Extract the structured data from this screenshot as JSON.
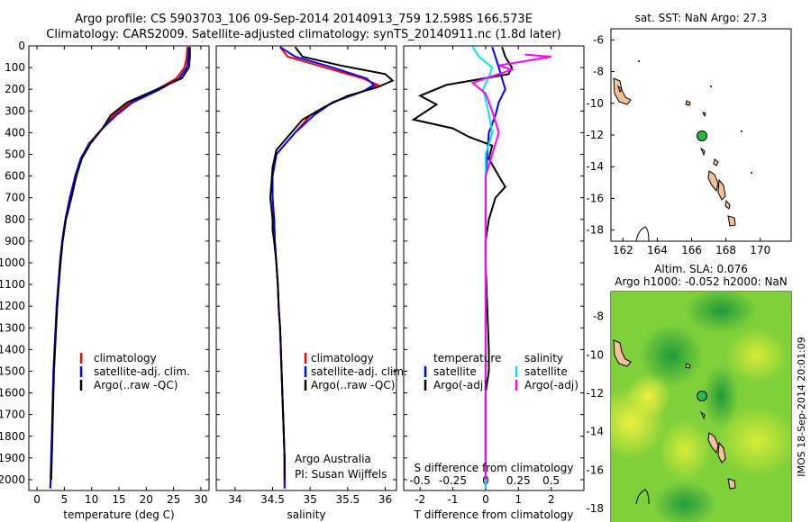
{
  "header": {
    "line1": "Argo profile: CS 5903703_106 09-Sep-2014 20140913_759 12.598S 166.573E",
    "line2": "Climatology: CARS2009. Satellite-adjusted climatology: synTS_20140911.nc (1.8d later)"
  },
  "credit": "IMOS 18-Sep-2014 20:01:09",
  "colors": {
    "climatology": "#ff0000",
    "satellite": "#0000ff",
    "argo": "#000000",
    "argo_salinity": "#ff00ff",
    "satellite_salinity": "#00e5ee",
    "land": "#f4c09a",
    "float_marker": "#22bb44"
  },
  "chart_data": [
    {
      "type": "line",
      "xlabel": "temperature (deg C)",
      "ylabel": "",
      "xlim": [
        -1.5,
        31.5
      ],
      "ylim": [
        2050,
        0
      ],
      "xticks": [
        0,
        5,
        10,
        15,
        20,
        25,
        30
      ],
      "yticks": [
        0,
        100,
        200,
        300,
        400,
        500,
        600,
        700,
        800,
        900,
        1000,
        1100,
        1200,
        1300,
        1400,
        1500,
        1600,
        1700,
        1800,
        1900,
        2000
      ],
      "legend": [
        "climatology",
        "satellite-adj. clim.",
        "Argo(..raw -QC)"
      ],
      "legend_position": "center",
      "series": [
        {
          "name": "climatology",
          "color": "#ff0000",
          "points": [
            [
              27.5,
              5
            ],
            [
              27.4,
              50
            ],
            [
              27.0,
              100
            ],
            [
              25.5,
              150
            ],
            [
              22.0,
              200
            ],
            [
              17.0,
              260
            ],
            [
              14.0,
              320
            ],
            [
              12.0,
              380
            ],
            [
              9.5,
              450
            ],
            [
              8.0,
              520
            ],
            [
              7.0,
              600
            ],
            [
              6.0,
              700
            ],
            [
              5.2,
              800
            ],
            [
              4.6,
              900
            ],
            [
              4.2,
              1000
            ],
            [
              3.9,
              1100
            ],
            [
              3.6,
              1200
            ],
            [
              3.4,
              1300
            ],
            [
              3.2,
              1400
            ],
            [
              3.0,
              1500
            ],
            [
              2.9,
              1600
            ],
            [
              2.8,
              1700
            ],
            [
              2.7,
              1800
            ],
            [
              2.6,
              1900
            ],
            [
              2.5,
              2000
            ],
            [
              2.4,
              2040
            ]
          ]
        },
        {
          "name": "satellite-adj. clim.",
          "color": "#0000ff",
          "points": [
            [
              27.8,
              5
            ],
            [
              27.7,
              50
            ],
            [
              27.4,
              100
            ],
            [
              26.0,
              150
            ],
            [
              22.5,
              200
            ],
            [
              17.5,
              260
            ],
            [
              14.5,
              320
            ],
            [
              12.0,
              380
            ],
            [
              9.6,
              450
            ],
            [
              8.0,
              520
            ],
            [
              7.0,
              600
            ],
            [
              6.0,
              700
            ],
            [
              5.2,
              800
            ],
            [
              4.6,
              900
            ],
            [
              4.2,
              1000
            ],
            [
              3.9,
              1100
            ],
            [
              3.6,
              1200
            ],
            [
              3.4,
              1300
            ],
            [
              3.2,
              1400
            ],
            [
              3.0,
              1500
            ],
            [
              2.9,
              1600
            ],
            [
              2.8,
              1700
            ],
            [
              2.7,
              1800
            ],
            [
              2.6,
              1900
            ],
            [
              2.5,
              2000
            ],
            [
              2.45,
              2040
            ]
          ]
        },
        {
          "name": "Argo(..raw -QC)",
          "color": "#000000",
          "points": [
            [
              28.0,
              5
            ],
            [
              28.0,
              50
            ],
            [
              27.8,
              100
            ],
            [
              26.5,
              150
            ],
            [
              22.0,
              200
            ],
            [
              16.5,
              260
            ],
            [
              13.5,
              320
            ],
            [
              12.0,
              380
            ],
            [
              9.8,
              450
            ],
            [
              8.2,
              520
            ],
            [
              7.2,
              600
            ],
            [
              6.3,
              700
            ],
            [
              5.3,
              800
            ],
            [
              4.7,
              900
            ],
            [
              4.3,
              1000
            ],
            [
              4.0,
              1100
            ],
            [
              3.7,
              1200
            ],
            [
              3.5,
              1300
            ],
            [
              3.3,
              1400
            ],
            [
              3.1,
              1500
            ],
            [
              3.0,
              1600
            ],
            [
              2.9,
              1700
            ],
            [
              2.8,
              1800
            ],
            [
              2.7,
              1900
            ],
            [
              2.6,
              2000
            ]
          ]
        }
      ]
    },
    {
      "type": "line",
      "xlabel": "salinity",
      "ylabel": "",
      "xlim": [
        33.75,
        36.15
      ],
      "ylim": [
        2050,
        0
      ],
      "xticks": [
        34,
        34.5,
        35,
        35.5,
        36
      ],
      "xtick_labels": [
        "34",
        "34.5",
        "35",
        "35.5",
        "36"
      ],
      "legend": [
        "climatology",
        "satellite-adj. clim.",
        "Argo(..raw -QC)"
      ],
      "legend_position": "center",
      "notes": [
        "Argo Australia",
        "PI: Susan Wijffels"
      ],
      "series": [
        {
          "name": "climatology",
          "color": "#ff0000",
          "points": [
            [
              34.6,
              5
            ],
            [
              34.7,
              50
            ],
            [
              35.2,
              100
            ],
            [
              35.7,
              150
            ],
            [
              35.9,
              180
            ],
            [
              35.7,
              210
            ],
            [
              35.3,
              260
            ],
            [
              35.0,
              320
            ],
            [
              34.8,
              400
            ],
            [
              34.55,
              500
            ],
            [
              34.5,
              600
            ],
            [
              34.5,
              700
            ],
            [
              34.52,
              800
            ],
            [
              34.53,
              900
            ],
            [
              34.55,
              1000
            ],
            [
              34.57,
              1100
            ],
            [
              34.58,
              1200
            ],
            [
              34.6,
              1300
            ],
            [
              34.61,
              1400
            ],
            [
              34.62,
              1500
            ],
            [
              34.63,
              1600
            ],
            [
              34.64,
              1700
            ],
            [
              34.65,
              1800
            ],
            [
              34.66,
              1900
            ],
            [
              34.66,
              2000
            ],
            [
              34.66,
              2040
            ]
          ]
        },
        {
          "name": "satellite-adj. clim.",
          "color": "#0000ff",
          "points": [
            [
              34.6,
              5
            ],
            [
              34.8,
              50
            ],
            [
              35.3,
              100
            ],
            [
              35.75,
              150
            ],
            [
              35.85,
              180
            ],
            [
              35.7,
              210
            ],
            [
              35.3,
              260
            ],
            [
              35.05,
              320
            ],
            [
              34.8,
              400
            ],
            [
              34.55,
              500
            ],
            [
              34.5,
              600
            ],
            [
              34.5,
              700
            ],
            [
              34.52,
              800
            ],
            [
              34.53,
              900
            ],
            [
              34.55,
              1000
            ],
            [
              34.57,
              1100
            ],
            [
              34.58,
              1200
            ],
            [
              34.6,
              1300
            ],
            [
              34.61,
              1400
            ],
            [
              34.62,
              1500
            ],
            [
              34.63,
              1600
            ],
            [
              34.64,
              1700
            ],
            [
              34.65,
              1800
            ],
            [
              34.66,
              1900
            ],
            [
              34.66,
              2000
            ],
            [
              34.66,
              2040
            ]
          ]
        },
        {
          "name": "Argo(..raw -QC)",
          "color": "#000000",
          "points": [
            [
              34.8,
              5
            ],
            [
              34.9,
              50
            ],
            [
              35.4,
              90
            ],
            [
              36.0,
              130
            ],
            [
              36.1,
              160
            ],
            [
              35.9,
              190
            ],
            [
              35.5,
              230
            ],
            [
              35.2,
              280
            ],
            [
              34.9,
              340
            ],
            [
              34.75,
              400
            ],
            [
              34.55,
              480
            ],
            [
              34.5,
              560
            ],
            [
              34.47,
              700
            ],
            [
              34.5,
              800
            ],
            [
              34.5,
              850
            ],
            [
              34.52,
              900
            ],
            [
              34.55,
              1000
            ],
            [
              34.57,
              1100
            ],
            [
              34.58,
              1200
            ],
            [
              34.6,
              1300
            ],
            [
              34.61,
              1400
            ],
            [
              34.62,
              1500
            ],
            [
              34.63,
              1600
            ],
            [
              34.64,
              1700
            ],
            [
              34.65,
              1800
            ],
            [
              34.66,
              1900
            ],
            [
              34.66,
              2000
            ]
          ]
        }
      ]
    },
    {
      "type": "line",
      "xlabel": "T difference from climatology",
      "xlabel_top": "S difference from climatology",
      "ylabel": "",
      "xlim": [
        -2.5,
        3
      ],
      "ylim": [
        2050,
        0
      ],
      "xticks": [
        -2,
        -1,
        0,
        1,
        2
      ],
      "xtick_labels": [
        "-2",
        "-1",
        "0",
        "1",
        "2"
      ],
      "secondary_xticks": [
        -0.5,
        -0.25,
        0,
        0.25,
        0.5
      ],
      "secondary_xtick_labels": [
        "-0.5",
        "-0.25",
        "0",
        "0.25",
        "0.5"
      ],
      "legend_groups": [
        {
          "title": "temperature",
          "items": [
            "satellite",
            "Argo(-adj)"
          ]
        },
        {
          "title": "salinity",
          "items": [
            "satellite",
            "Argo(-adj)"
          ]
        }
      ],
      "series": [
        {
          "name": "temperature satellite",
          "color": "#0000ff",
          "points": [
            [
              0.2,
              5
            ],
            [
              0.3,
              50
            ],
            [
              0.4,
              100
            ],
            [
              0.5,
              150
            ],
            [
              0.6,
              200
            ],
            [
              0.4,
              260
            ],
            [
              0.3,
              320
            ],
            [
              0.1,
              400
            ],
            [
              0.05,
              500
            ],
            [
              0.0,
              600
            ],
            [
              0.0,
              800
            ],
            [
              0.0,
              1000
            ],
            [
              0.0,
              1500
            ],
            [
              0.0,
              2040
            ]
          ]
        },
        {
          "name": "temperature Argo(-adj)",
          "color": "#000000",
          "points": [
            [
              0.5,
              5
            ],
            [
              0.6,
              50
            ],
            [
              0.8,
              100
            ],
            [
              0.7,
              130
            ],
            [
              -1.2,
              180
            ],
            [
              -2.0,
              230
            ],
            [
              -1.5,
              270
            ],
            [
              -2.2,
              340
            ],
            [
              -1.0,
              380
            ],
            [
              -0.5,
              420
            ],
            [
              0.2,
              460
            ],
            [
              0.1,
              520
            ],
            [
              0.4,
              600
            ],
            [
              0.6,
              650
            ],
            [
              0.3,
              700
            ],
            [
              0.1,
              800
            ],
            [
              0.0,
              900
            ],
            [
              0.0,
              1000
            ],
            [
              0.05,
              1200
            ],
            [
              0.1,
              1400
            ],
            [
              0.1,
              1500
            ],
            [
              0.0,
              1600
            ],
            [
              0.0,
              2000
            ]
          ]
        },
        {
          "name": "salinity satellite",
          "color": "#00e5ee",
          "points": [
            [
              -0.1,
              5
            ],
            [
              -0.05,
              50
            ],
            [
              0.05,
              100
            ],
            [
              0.02,
              150
            ],
            [
              -0.02,
              200
            ],
            [
              0.02,
              300
            ],
            [
              0.05,
              400
            ],
            [
              0.0,
              500
            ],
            [
              0.0,
              700
            ],
            [
              0.0,
              1000
            ],
            [
              0.0,
              1500
            ],
            [
              0.0,
              2040
            ]
          ]
        },
        {
          "name": "salinity Argo(-adj)",
          "color": "#ff00ff",
          "points": [
            [
              0.3,
              40
            ],
            [
              0.5,
              50
            ],
            [
              0.3,
              70
            ],
            [
              0.1,
              90
            ],
            [
              0.2,
              110
            ],
            [
              0.05,
              140
            ],
            [
              -0.1,
              170
            ],
            [
              0.0,
              220
            ],
            [
              0.05,
              300
            ],
            [
              0.1,
              400
            ],
            [
              0.05,
              500
            ],
            [
              0.0,
              600
            ],
            [
              0.0,
              800
            ],
            [
              0.0,
              1000
            ],
            [
              0.0,
              1500
            ],
            [
              0.0,
              2000
            ]
          ]
        }
      ]
    },
    {
      "type": "scatter",
      "title": "sat. SST: NaN Argo: 27.3",
      "xlim": [
        161.3,
        171.8
      ],
      "ylim": [
        -18.7,
        -5.3
      ],
      "xticks": [
        162,
        164,
        166,
        168,
        170
      ],
      "yticks": [
        -6,
        -8,
        -10,
        -12,
        -14,
        -16,
        -18
      ],
      "float_position": [
        166.573,
        -12.598
      ]
    },
    {
      "type": "heatmap",
      "title": "Altim. SLA: 0.076",
      "subtitle": "Argo h1000: -0.052 h2000: NaN",
      "xlim": [
        161.3,
        171.8
      ],
      "ylim": [
        -18.7,
        -6.7
      ],
      "xticks": [
        162,
        164,
        166,
        168,
        170
      ],
      "yticks": [
        -8,
        -10,
        -12,
        -14,
        -16,
        -18
      ],
      "float_position": [
        166.573,
        -12.598
      ]
    }
  ]
}
